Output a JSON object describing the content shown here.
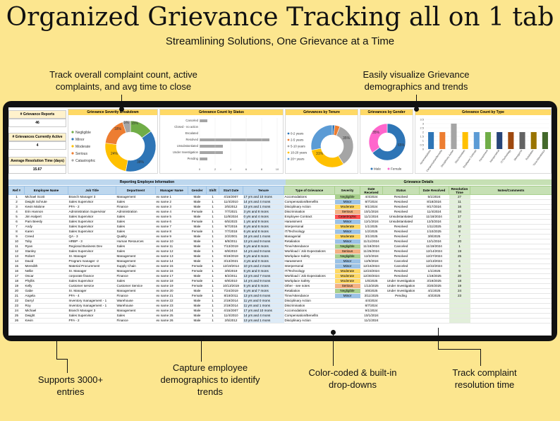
{
  "title": "Organized Grievance Tracking all on 1 tab",
  "subtitle": "Streamlining Solutions, One Grievance at a Time",
  "callouts": {
    "c1": "Track overall complaint count, active complaints, and avg time to close",
    "c2": "Easily visualize Grievance demographics and trends",
    "c3": "Supports 3000+ entries",
    "c4": "Capture employee demographics to identify trends",
    "c5": "Color-coded & built-in drop-downs",
    "c6": "Track complaint resolution time"
  },
  "kpis": [
    {
      "label": "# Grievance Reports",
      "value": "46"
    },
    {
      "label": "# Grievances Currently Active",
      "value": "4"
    },
    {
      "label": "Average Resolution Time (days)",
      "value": "15.67"
    }
  ],
  "charts": {
    "severity": {
      "title": "Grievance Severity Breakdown",
      "labels": [
        "Negligible",
        "Minor",
        "Moderate",
        "Serious",
        "Catastrophic"
      ],
      "colors": [
        "#70ad47",
        "#2e75b6",
        "#ffc000",
        "#ed7d31",
        "#a5a5a5"
      ],
      "values": [
        15,
        38,
        24,
        18,
        5
      ],
      "pct_labels": [
        "15%",
        "38%",
        "24%",
        "18%",
        "5%"
      ]
    },
    "status": {
      "title": "Grievance Count by Status",
      "labels": [
        "Canceled",
        "Closed - no action",
        "Escalated",
        "Resolved",
        "Unsubstantiated",
        "Under Investigation",
        "Pending"
      ],
      "values": [
        1,
        0,
        0,
        9,
        3,
        3,
        1
      ],
      "ticks": [
        "0",
        "2",
        "4",
        "6",
        "8",
        "10"
      ]
    },
    "tenure": {
      "title": "Grievances by Tenure",
      "labels": [
        "0-2 years",
        "2-5 years",
        "5-10 years",
        "10-20 years",
        "20+ years"
      ],
      "colors": [
        "#2e75b6",
        "#ed7d31",
        "#a5a5a5",
        "#ffc000",
        "#5b9bd5"
      ],
      "values": [
        2,
        4,
        35,
        31,
        28
      ],
      "pct_labels": [
        "35%",
        "31%"
      ]
    },
    "gender": {
      "title": "Grievances by Gender",
      "labels": [
        "Male",
        "Female"
      ],
      "colors": [
        "#2e75b6",
        "#ff66cc"
      ],
      "values": [
        65,
        35
      ],
      "pct_labels": [
        "65%",
        "35%"
      ]
    },
    "type": {
      "title": "Grievance Count by Type",
      "labels": [
        "Accomodations",
        "Compensation/Benefits",
        "Disciplinary Action",
        "Discrimination",
        "Employee Contract",
        "Harassment",
        "Interpersonal",
        "IT/Technology",
        "Managerial",
        "Retaliation",
        "Time/Attendance"
      ],
      "values": [
        2,
        2,
        3,
        2,
        2,
        2,
        2,
        2,
        2,
        2,
        2
      ],
      "colors": [
        "#2e75b6",
        "#ed7d31",
        "#a5a5a5",
        "#ffc000",
        "#5b9bd5",
        "#70ad47",
        "#264478",
        "#9e480e",
        "#636363",
        "#997300",
        "#43682b"
      ],
      "ticks": [
        "0",
        "0.5",
        "1",
        "1.5",
        "2",
        "2.5",
        "3",
        "3.5"
      ]
    }
  },
  "sections": {
    "employee": "Reporting Employee Information",
    "details": "Grievance Details"
  },
  "headers": [
    "Ref #",
    "Employee Name",
    "Job Title",
    "Department",
    "Manager Name",
    "Gender",
    "Shift",
    "Start Date",
    "Tenure",
    "Type of Grievance",
    "Severity",
    "Date Received",
    "Status",
    "Date Resolved",
    "Resolution Time",
    "Notes/Comments"
  ],
  "severity_colors": {
    "Negligible": "#a9d08e",
    "Minor": "#9bc2e6",
    "Moderate": "#ffd966",
    "Serious": "#f4b183",
    "Catastrophic": "#ff5050"
  },
  "rows": [
    [
      "1",
      "Michael Scott",
      "Branch Manager 3",
      "Management",
      "ex name 1",
      "Male",
      "1",
      "4/15/2007",
      "17 yrs and 10 mons",
      "Accomodations",
      "Negligible",
      "4/4/2024",
      "Resolved",
      "5/1/2024",
      "27"
    ],
    [
      "2",
      "Dwight Schrute",
      "Sales Supervisor",
      "Sales",
      "ex name 2",
      "Male",
      "1",
      "11/4/2010",
      "14 yrs and 4 mons",
      "Compensation/Benefits",
      "Minor",
      "8/7/2024",
      "Resolved",
      "8/18/2024",
      "11"
    ],
    [
      "3",
      "Kevin Malone",
      "PFA - 2",
      "Finance",
      "ex name 3",
      "Male",
      "1",
      "2/5/2012",
      "13 yrs and 1 mons",
      "Disciplinary Action",
      "Moderate",
      "9/1/2024",
      "Resolved",
      "9/17/2024",
      "16"
    ],
    [
      "4",
      "Erin Hannon",
      "Administration Supervisor",
      "Administration",
      "ex name 4",
      "Female",
      "1",
      "7/7/2021",
      "3 yrs and 8 mons",
      "Discrimination",
      "Serious",
      "10/1/2024",
      "Resolved",
      "11/4/2024",
      "34"
    ],
    [
      "5",
      "Jim Halpert",
      "Sales Supervisor",
      "Sales",
      "ex name 5",
      "Male",
      "1",
      "11/8/2024",
      "0 yrs and 4 mons",
      "Employee Contract",
      "Catastrophic",
      "11/1/2024",
      "Unsubstantiated",
      "11/18/2024",
      "17"
    ],
    [
      "6",
      "Pam Beesly",
      "Sales Supervisor",
      "Sales",
      "ex name 6",
      "Female",
      "1",
      "6/5/2023",
      "1 yrs and 9 mons",
      "Harassment",
      "Minor",
      "12/1/2024",
      "Unsubstantiated",
      "12/3/2024",
      "2"
    ],
    [
      "7",
      "Andy",
      "Sales Supervisor",
      "Sales",
      "ex name 7",
      "Male",
      "1",
      "9/7/2016",
      "8 yrs and 6 mons",
      "Interpersonal",
      "Moderate",
      "1/1/2025",
      "Resolved",
      "1/11/2025",
      "10"
    ],
    [
      "8",
      "Karen",
      "Sales Supervisor",
      "Sales",
      "ex name 8",
      "Female",
      "1",
      "7/7/2018",
      "6 yrs and 8 mons",
      "IT/Technology",
      "Minor",
      "1/2/2025",
      "Resolved",
      "1/10/2025",
      "8"
    ],
    [
      "9",
      "Creed",
      "QA - 3",
      "Quality",
      "ex name 9",
      "Male",
      "1",
      "2/2/2001",
      "24 yrs and 1 mons",
      "Managerial",
      "Moderate",
      "3/1/2025",
      "Resolved",
      "3/8/2025",
      "7"
    ],
    [
      "10",
      "Toby",
      "HRBP - 3",
      "Human Resources",
      "ex name 10",
      "Male",
      "1",
      "6/8/2011",
      "13 yrs and 9 mons",
      "Retaliation",
      "Minor",
      "11/11/2024",
      "Resolved",
      "12/1/2024",
      "20"
    ],
    [
      "11",
      "Ryan",
      "Regional Business Dev",
      "Sales",
      "ex name 11",
      "Male",
      "1",
      "7/13/2019",
      "5 yrs and 8 mons",
      "Time/Attendance",
      "Negligible",
      "11/18/2024",
      "Canceled",
      "11/19/2024",
      "1"
    ],
    [
      "12",
      "Stanley",
      "Sales Supervisor",
      "Sales",
      "ex name 12",
      "Male",
      "1",
      "6/9/2010",
      "14 yrs and 9 mons",
      "Workload / Job Expectations",
      "Serious",
      "11/25/2024",
      "Resolved",
      "12/14/2024",
      "19"
    ],
    [
      "13",
      "Robert",
      "Sr. Manager",
      "Management",
      "ex name 13",
      "Male",
      "1",
      "9/19/2019",
      "5 yrs and 6 mons",
      "Workplace Safety",
      "Negligible",
      "12/2/2024",
      "Resolved",
      "12/27/2024",
      "25"
    ],
    [
      "14",
      "David",
      "Program manager -2",
      "Management",
      "ex name 14",
      "Male",
      "1",
      "3/13/2021",
      "4 yrs and 0 mons",
      "Harassment",
      "Minor",
      "12/9/2024",
      "Canceled",
      "12/13/2024",
      "4"
    ],
    [
      "15",
      "Meredith",
      "Material Procurement",
      "Supply Chain",
      "ex name 15",
      "Female",
      "1",
      "12/19/2014",
      "10 yrs and 2 mons",
      "Interpersonal",
      "Minor",
      "12/16/2024",
      "Canceled",
      "12/22/2024",
      "6"
    ],
    [
      "16",
      "Nellie",
      "Sr. Manager",
      "Management",
      "ex name 16",
      "Female",
      "1",
      "3/9/2019",
      "6 yrs and 0 mons",
      "IT/Technology",
      "Moderate",
      "12/23/2024",
      "Resolved",
      "1/1/2025",
      "9"
    ],
    [
      "17",
      "Oscar",
      "corporate finance",
      "Finance",
      "ex name 17",
      "Male",
      "1",
      "8/2/2011",
      "13 yrs and 7 mons",
      "Workload / Job Expectations",
      "Moderate",
      "12/30/2024",
      "Resolved",
      "1/19/2025",
      "20"
    ],
    [
      "18",
      "Phyllis",
      "Sales Supervisor",
      "Sales",
      "ex name 18",
      "Female",
      "1",
      "6/9/2010",
      "14 yrs and 9 mons",
      "Workplace Safety",
      "Moderate",
      "1/6/2025",
      "Under Investigation",
      "3/19/2025",
      "18"
    ],
    [
      "19",
      "Kelly",
      "Customer service",
      "Customer Service",
      "ex name 19",
      "Female",
      "1",
      "10/13/2019",
      "5 yrs and 5 mons",
      "Other - see notes",
      "Serious",
      "1/13/2025",
      "Under Investigation",
      "3/20/2025",
      "19"
    ],
    [
      "20",
      "Gabe",
      "Sr. Manager",
      "Management",
      "ex name 20",
      "Male",
      "1",
      "7/24/2019",
      "5 yrs and 7 mons",
      "Retaliation",
      "Negligible",
      "3/8/2025",
      "Under Investigation",
      "4/1/2025",
      "24"
    ],
    [
      "21",
      "Angela",
      "PFA - 4",
      "Finance",
      "ex name 21",
      "Female",
      "1",
      "8/19/2011",
      "13 yrs and 6 mons",
      "Time/Attendance",
      "Minor",
      "3/11/2025",
      "Pending",
      "4/3/2025",
      "23"
    ],
    [
      "22",
      "Darryl",
      "Inventory management - 1",
      "Warehouse",
      "ex name 22",
      "Male",
      "1",
      "2/19/2014",
      "11 yrs and 0 mons",
      "Disciplinary Action",
      "",
      "4/4/2024",
      "",
      "",
      ""
    ],
    [
      "23",
      "Roy",
      "Inventory management - 1",
      "Warehouse",
      "ex name 23",
      "Male",
      "1",
      "2/19/2014",
      "11 yrs and 1 mons",
      "Discrimination",
      "",
      "8/7/2024",
      "",
      "",
      ""
    ],
    [
      "24",
      "Michael",
      "Branch Manager 3",
      "Management",
      "ex name 24",
      "Male",
      "1",
      "4/15/2007",
      "17 yrs and 10 mons",
      "Accomodations",
      "",
      "9/1/2024",
      "",
      "",
      ""
    ],
    [
      "25",
      "Dwight",
      "Sales Supervisor",
      "Sales",
      "ex name 25",
      "Male",
      "1",
      "11/4/2010",
      "14 yrs and 4 mons",
      "Compensation/Benefits",
      "",
      "10/1/2024",
      "",
      "",
      ""
    ],
    [
      "26",
      "Kevin",
      "PFA - 2",
      "Finance",
      "ex name 26",
      "Male",
      "1",
      "2/5/2012",
      "13 yrs and 1 mons",
      "Disciplinary Action",
      "",
      "11/1/2024",
      "",
      "",
      ""
    ]
  ]
}
